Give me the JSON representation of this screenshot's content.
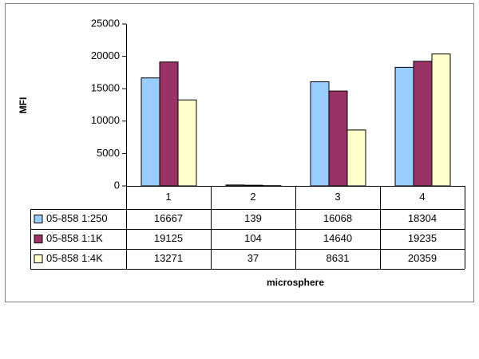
{
  "chart_data": {
    "type": "bar",
    "x_label": "microsphere",
    "y_label": "MFI",
    "categories": [
      "1",
      "2",
      "3",
      "4"
    ],
    "series": [
      {
        "name": "05-858 1:250",
        "color": "#99ccff",
        "values": [
          16667,
          139,
          16068,
          18304
        ]
      },
      {
        "name": "05-858 1:1K",
        "color": "#993366",
        "values": [
          19125,
          104,
          14640,
          19235
        ]
      },
      {
        "name": "05-858 1:4K",
        "color": "#ffffcc",
        "values": [
          13271,
          37,
          8631,
          20359
        ]
      }
    ],
    "ylim": [
      0,
      25000
    ],
    "yticks": [
      0,
      5000,
      10000,
      15000,
      20000,
      25000
    ],
    "grid": false
  }
}
